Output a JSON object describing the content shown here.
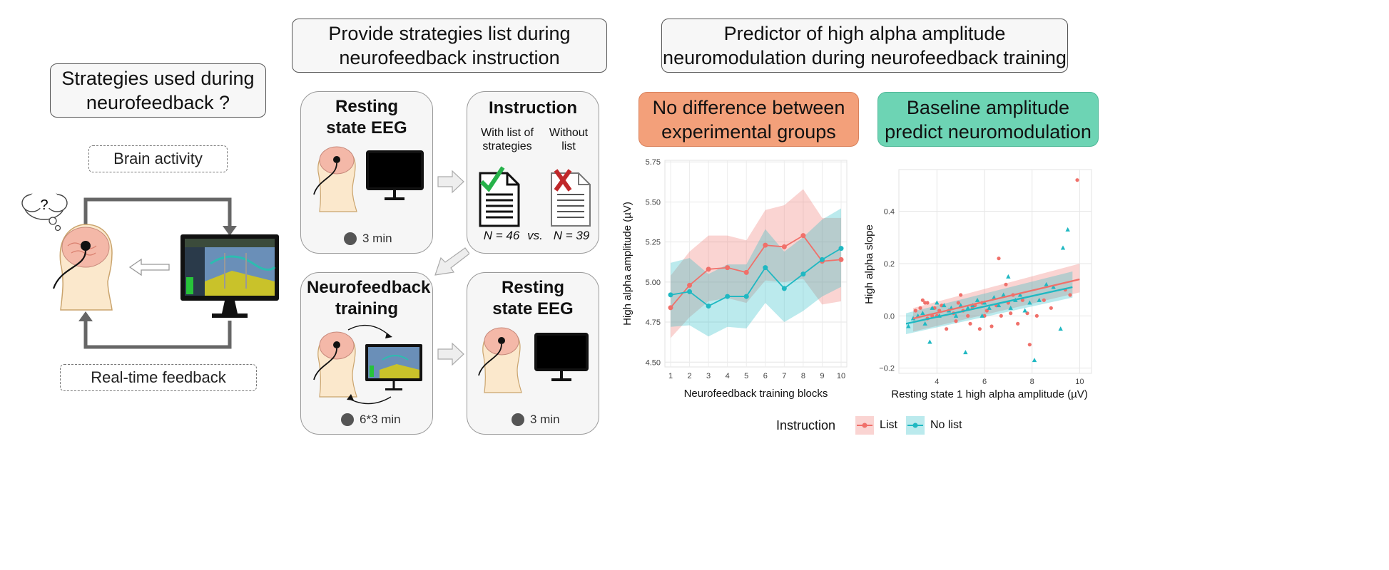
{
  "left": {
    "question": "Strategies used during neurofeedback ?",
    "brain_activity": "Brain activity",
    "realtime_feedback": "Real-time feedback",
    "thought": "?"
  },
  "middle": {
    "title": "Provide strategies list during neurofeedback instruction",
    "rest1": {
      "title": "Resting state EEG",
      "time": "3 min"
    },
    "instruction": {
      "title": "Instruction",
      "with_label": "With list of strategies",
      "without_label": "Without list",
      "n_with": "N = 46",
      "vs": "vs.",
      "n_without": "N = 39"
    },
    "training": {
      "title": "Neurofeedback training",
      "time": "6*3 min"
    },
    "rest2": {
      "title": "Resting state EEG",
      "time": "3 min"
    }
  },
  "right": {
    "title": "Predictor of high alpha amplitude neuromodulation during neurofeedback training",
    "left_header": "No difference between experimental groups",
    "right_header": "Baseline amplitude predict neuromodulation",
    "legend_title": "Instruction",
    "legend_list": "List",
    "legend_nolist": "No list"
  },
  "colors": {
    "list": "#f0706a",
    "nolist": "#1fb8c2",
    "orange_header": "#f3a07a",
    "teal_header": "#6dd4b4"
  },
  "chart_data": [
    {
      "type": "line",
      "xlabel": "Neurofeedback training blocks",
      "ylabel": "High alpha amplitude (µV)",
      "x": [
        1,
        2,
        3,
        4,
        5,
        6,
        7,
        8,
        9,
        10
      ],
      "ylim": [
        4.47,
        5.76
      ],
      "yticks": [
        "4.50",
        "4.75",
        "5.00",
        "5.25",
        "5.50",
        "5.75"
      ],
      "xticks": [
        "1",
        "2",
        "3",
        "4",
        "5",
        "6",
        "7",
        "8",
        "9",
        "10"
      ],
      "series": [
        {
          "name": "List",
          "values": [
            4.84,
            4.98,
            5.08,
            5.09,
            5.06,
            5.23,
            5.22,
            5.29,
            5.13,
            5.14
          ],
          "lower": [
            4.65,
            4.78,
            4.88,
            4.9,
            4.87,
            5.01,
            5.0,
            5.02,
            4.86,
            4.88
          ],
          "upper": [
            5.04,
            5.19,
            5.29,
            5.29,
            5.26,
            5.45,
            5.48,
            5.58,
            5.4,
            5.4
          ]
        },
        {
          "name": "No list",
          "values": [
            4.92,
            4.94,
            4.85,
            4.91,
            4.91,
            5.09,
            4.96,
            5.05,
            5.14,
            5.21
          ],
          "lower": [
            4.72,
            4.73,
            4.66,
            4.72,
            4.71,
            4.87,
            4.75,
            4.82,
            4.91,
            4.97
          ],
          "upper": [
            5.12,
            5.15,
            5.05,
            5.11,
            5.11,
            5.33,
            5.19,
            5.28,
            5.39,
            5.46
          ]
        }
      ],
      "grid": true
    },
    {
      "type": "scatter",
      "xlabel": "Resting state 1 high alpha amplitude (µV)",
      "ylabel": "High alpha slope",
      "xlim": [
        2.4,
        10.5
      ],
      "ylim": [
        -0.22,
        0.56
      ],
      "xticks": [
        4,
        6,
        8,
        10
      ],
      "yticks": [
        -0.2,
        0.0,
        0.2,
        0.4
      ],
      "ytick_labels": [
        "−0.2",
        "0.0",
        "0.2",
        "0.4"
      ],
      "grid": true,
      "series": [
        {
          "name": "List",
          "marker": "circle",
          "points": [
            [
              3.1,
              0.02
            ],
            [
              3.3,
              0.03
            ],
            [
              3.4,
              0.06
            ],
            [
              3.5,
              0.05
            ],
            [
              3.6,
              0.05
            ],
            [
              3.6,
              -0.01
            ],
            [
              3.8,
              0.0
            ],
            [
              3.9,
              0.03
            ],
            [
              4.0,
              0.0
            ],
            [
              4.1,
              0.02
            ],
            [
              4.2,
              0.04
            ],
            [
              4.4,
              -0.05
            ],
            [
              4.5,
              0.02
            ],
            [
              4.7,
              0.01
            ],
            [
              4.8,
              -0.02
            ],
            [
              4.9,
              0.05
            ],
            [
              5.0,
              0.08
            ],
            [
              5.1,
              0.02
            ],
            [
              5.3,
              0.0
            ],
            [
              5.4,
              -0.03
            ],
            [
              5.5,
              0.03
            ],
            [
              5.6,
              0.04
            ],
            [
              5.8,
              -0.05
            ],
            [
              5.9,
              0.05
            ],
            [
              6.0,
              0.0
            ],
            [
              6.1,
              0.02
            ],
            [
              6.3,
              -0.04
            ],
            [
              6.5,
              0.04
            ],
            [
              6.6,
              0.22
            ],
            [
              6.7,
              0.0
            ],
            [
              6.9,
              0.12
            ],
            [
              7.0,
              0.05
            ],
            [
              7.1,
              0.01
            ],
            [
              7.2,
              0.08
            ],
            [
              7.4,
              -0.03
            ],
            [
              7.6,
              0.06
            ],
            [
              7.8,
              0.01
            ],
            [
              7.9,
              -0.11
            ],
            [
              8.2,
              0.0
            ],
            [
              8.5,
              0.06
            ],
            [
              8.8,
              0.03
            ],
            [
              9.4,
              0.1
            ],
            [
              9.6,
              0.08
            ],
            [
              9.9,
              0.52
            ]
          ]
        },
        {
          "name": "No list",
          "marker": "triangle",
          "points": [
            [
              2.8,
              -0.04
            ],
            [
              3.0,
              -0.01
            ],
            [
              3.2,
              0.0
            ],
            [
              3.4,
              0.01
            ],
            [
              3.5,
              -0.03
            ],
            [
              3.7,
              -0.1
            ],
            [
              3.8,
              0.03
            ],
            [
              4.0,
              0.05
            ],
            [
              4.1,
              0.0
            ],
            [
              4.3,
              0.04
            ],
            [
              4.5,
              0.02
            ],
            [
              4.6,
              0.03
            ],
            [
              4.8,
              0.0
            ],
            [
              5.0,
              0.04
            ],
            [
              5.2,
              -0.14
            ],
            [
              5.3,
              0.03
            ],
            [
              5.5,
              0.04
            ],
            [
              5.7,
              0.06
            ],
            [
              5.9,
              0.0
            ],
            [
              6.0,
              0.05
            ],
            [
              6.2,
              0.03
            ],
            [
              6.4,
              0.07
            ],
            [
              6.6,
              0.04
            ],
            [
              6.8,
              0.08
            ],
            [
              7.0,
              0.15
            ],
            [
              7.1,
              0.03
            ],
            [
              7.3,
              0.06
            ],
            [
              7.5,
              0.08
            ],
            [
              7.7,
              0.02
            ],
            [
              7.9,
              0.05
            ],
            [
              8.1,
              -0.17
            ],
            [
              8.3,
              0.06
            ],
            [
              8.6,
              0.12
            ],
            [
              8.9,
              0.11
            ],
            [
              9.2,
              -0.05
            ],
            [
              9.3,
              0.26
            ],
            [
              9.5,
              0.33
            ]
          ]
        }
      ],
      "fits": [
        {
          "name": "List",
          "x": [
            3.0,
            10.0
          ],
          "y": [
            -0.01,
            0.14
          ],
          "ci_lower": [
            -0.06,
            0.09
          ],
          "ci_upper": [
            0.03,
            0.2
          ]
        },
        {
          "name": "No list",
          "x": [
            2.7,
            9.7
          ],
          "y": [
            -0.03,
            0.11
          ],
          "ci_lower": [
            -0.07,
            0.07
          ],
          "ci_upper": [
            0.01,
            0.17
          ]
        }
      ]
    }
  ]
}
